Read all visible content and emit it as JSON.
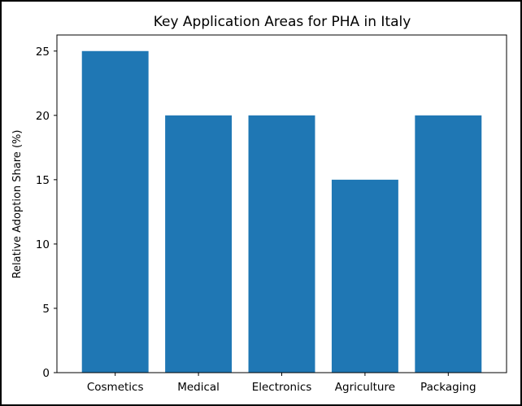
{
  "chart_data": {
    "type": "bar",
    "title": "Key Application Areas for PHA in Italy",
    "xlabel": "",
    "ylabel": "Relative Adoption Share (%)",
    "categories": [
      "Cosmetics",
      "Medical",
      "Electronics",
      "Agriculture",
      "Packaging"
    ],
    "values": [
      25,
      20,
      20,
      15,
      20
    ],
    "ylim": [
      0,
      26.25
    ],
    "yticks": [
      0,
      5,
      10,
      15,
      20,
      25
    ],
    "bar_color": "#1f77b4",
    "grid": false,
    "legend": "none"
  }
}
